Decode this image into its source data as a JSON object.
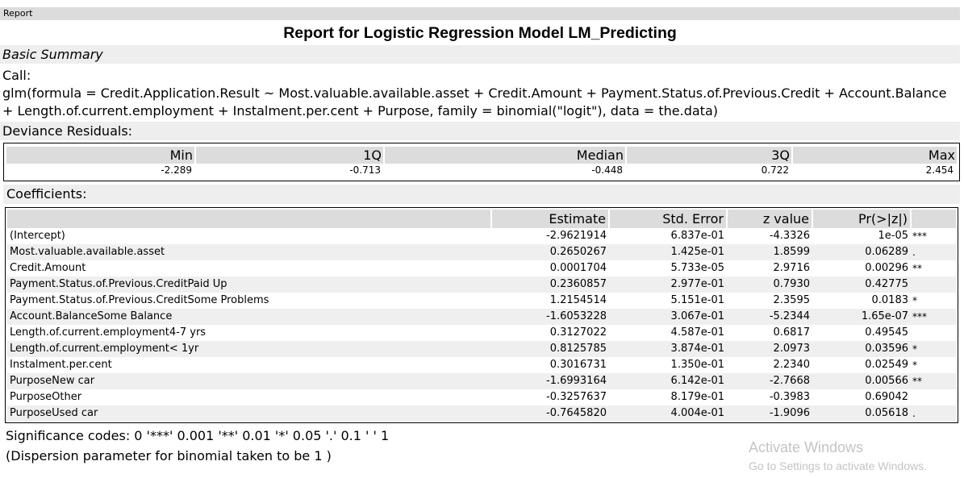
{
  "tab": {
    "label": "Report"
  },
  "report": {
    "title": "Report for Logistic Regression Model LM_Predicting",
    "section": "Basic Summary",
    "call_label": "Call:",
    "call_text": "glm(formula = Credit.Application.Result ~ Most.valuable.available.asset + Credit.Amount + Payment.Status.of.Previous.Credit + Account.Balance + Length.of.current.employment + Instalment.per.cent + Purpose, family = binomial(\"logit\"), data = the.data)",
    "deviance_label": "Deviance Residuals:",
    "deviance": {
      "headers": [
        "Min",
        "1Q",
        "Median",
        "3Q",
        "Max"
      ],
      "values": [
        "-2.289",
        "-0.713",
        "-0.448",
        "0.722",
        "2.454"
      ]
    },
    "coefficients_label": "Coefficients:",
    "coefficients": {
      "headers": [
        "",
        "Estimate",
        "Std. Error",
        "z value",
        "Pr(>|z|)",
        ""
      ],
      "rows": [
        [
          "(Intercept)",
          "-2.9621914",
          "6.837e-01",
          "-4.3326",
          "1e-05",
          "***"
        ],
        [
          "Most.valuable.available.asset",
          "0.2650267",
          "1.425e-01",
          "1.8599",
          "0.06289",
          "."
        ],
        [
          "Credit.Amount",
          "0.0001704",
          "5.733e-05",
          "2.9716",
          "0.00296",
          "**"
        ],
        [
          "Payment.Status.of.Previous.CreditPaid Up",
          "0.2360857",
          "2.977e-01",
          "0.7930",
          "0.42775",
          ""
        ],
        [
          "Payment.Status.of.Previous.CreditSome Problems",
          "1.2154514",
          "5.151e-01",
          "2.3595",
          "0.0183",
          "*"
        ],
        [
          "Account.BalanceSome Balance",
          "-1.6053228",
          "3.067e-01",
          "-5.2344",
          "1.65e-07",
          "***"
        ],
        [
          "Length.of.current.employment4-7 yrs",
          "0.3127022",
          "4.587e-01",
          "0.6817",
          "0.49545",
          ""
        ],
        [
          "Length.of.current.employment< 1yr",
          "0.8125785",
          "3.874e-01",
          "2.0973",
          "0.03596",
          "*"
        ],
        [
          "Instalment.per.cent",
          "0.3016731",
          "1.350e-01",
          "2.2340",
          "0.02549",
          "*"
        ],
        [
          "PurposeNew car",
          "-1.6993164",
          "6.142e-01",
          "-2.7668",
          "0.00566",
          "**"
        ],
        [
          "PurposeOther",
          "-0.3257637",
          "8.179e-01",
          "-0.3983",
          "0.69042",
          ""
        ],
        [
          "PurposeUsed car",
          "-0.7645820",
          "4.004e-01",
          "-1.9096",
          "0.05618",
          "."
        ]
      ]
    },
    "significance": "Significance codes: 0 '***' 0.001 '**' 0.01 '*' 0.05 '.' 0.1 ' ' 1",
    "dispersion": "(Dispersion parameter for binomial taken to be 1 )"
  },
  "watermark": {
    "line1": "Activate Windows",
    "line2": "Go to Settings to activate Windows."
  }
}
